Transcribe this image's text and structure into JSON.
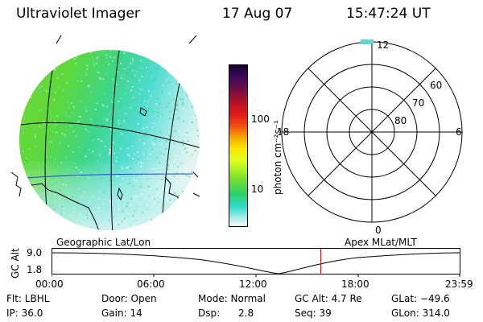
{
  "header": {
    "instrument": "Ultraviolet Imager",
    "date": "17 Aug 07",
    "time": "15:47:24 UT"
  },
  "colorbar": {
    "unit_label": "photon cm⁻²s⁻¹",
    "ticks": [
      "100",
      "10"
    ]
  },
  "polar_plot": {
    "mlt_labels": {
      "top": "12",
      "left": "18",
      "right": "6",
      "bottom": "0"
    },
    "lat_labels": [
      "60",
      "70",
      "80"
    ]
  },
  "panels": {
    "left_caption": "Geographic Lat/Lon",
    "right_caption": "Apex MLat/MLT"
  },
  "altitude_plot": {
    "ylabel": "GC Alt",
    "yticks": [
      "9.0",
      "1.8"
    ],
    "xticks": [
      "00:00",
      "06:00",
      "12:00",
      "18:00",
      "23:59"
    ],
    "current_time_marker_hour": 15.79
  },
  "status": {
    "filter": "Flt: LBHL",
    "ip": "IP: 36.0",
    "door": "Door: Open",
    "gain": "Gain: 14",
    "mode": "Mode: Normal",
    "dsp_label": "Dsp:",
    "dsp_value": "2.8",
    "gc_alt": "GC Alt: 4.7 Re",
    "seq": "Seq: 39",
    "glat": "GLat: −49.6",
    "glon": "GLon: 314.0"
  },
  "colors": {
    "grid": "#000000",
    "coast": "#000000",
    "marker": "#e01010"
  }
}
